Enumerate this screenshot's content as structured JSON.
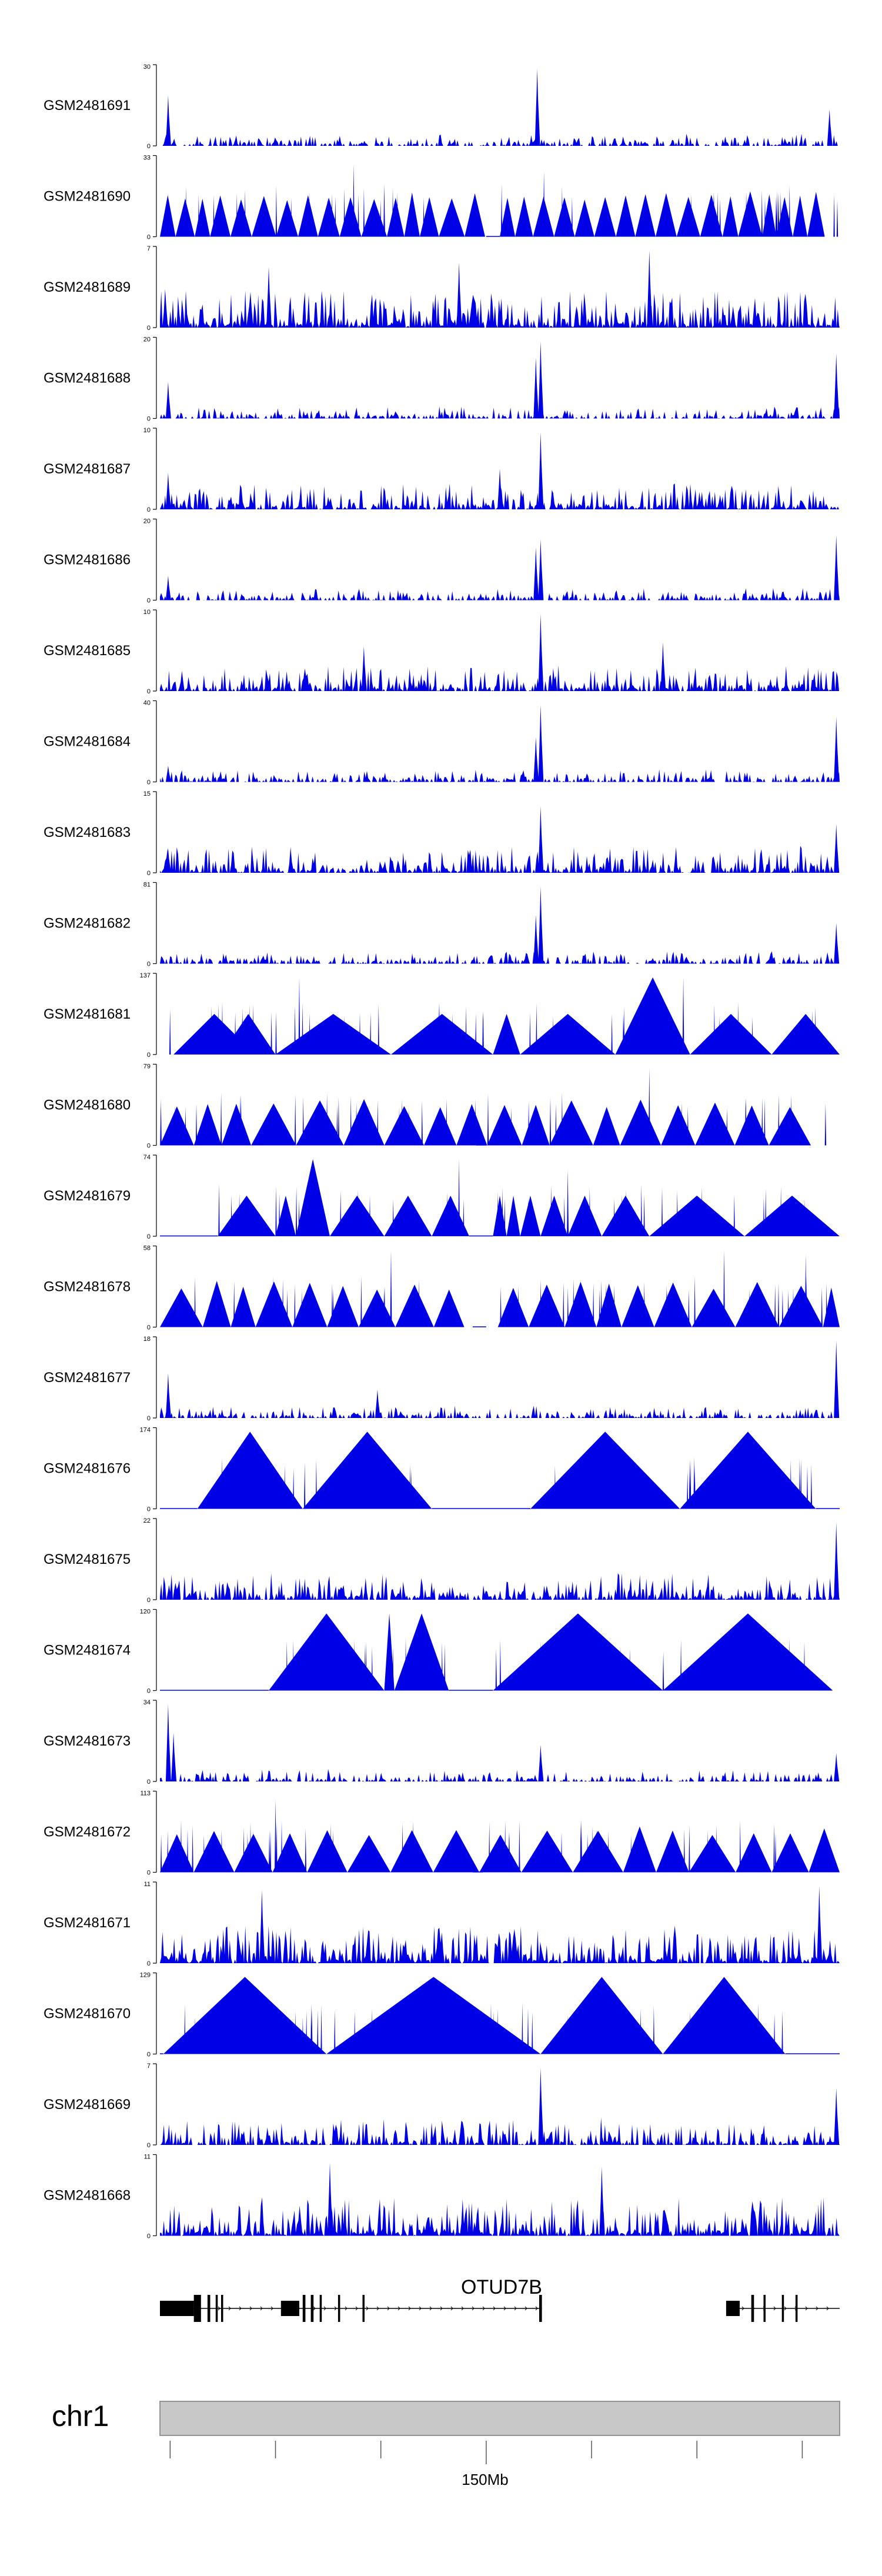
{
  "chart_data": {
    "type": "area",
    "genome_track": "coverage tracks",
    "tracks": [
      {
        "label": "GSM2481691",
        "ymax": "30",
        "profile": "spiky",
        "peaks": [
          [
            0.012,
            0.62
          ],
          [
            0.555,
            0.95
          ],
          [
            0.985,
            0.45
          ]
        ],
        "seed": 11
      },
      {
        "label": "GSM2481690",
        "ymax": "33",
        "profile": "triangles",
        "gaps": [
          [
            0.48,
            0.5
          ]
        ],
        "tri_count": 34,
        "peaks": [
          [
            0.285,
            0.9
          ],
          [
            0.33,
            0.65
          ],
          [
            0.565,
            0.8
          ],
          [
            0.91,
            0.55
          ]
        ],
        "seed": 12
      },
      {
        "label": "GSM2481689",
        "ymax": "7",
        "profile": "dense",
        "peaks": [
          [
            0.72,
            0.95
          ],
          [
            0.44,
            0.8
          ],
          [
            0.16,
            0.75
          ]
        ],
        "seed": 13
      },
      {
        "label": "GSM2481688",
        "ymax": "20",
        "profile": "spiky",
        "peaks": [
          [
            0.012,
            0.45
          ],
          [
            0.56,
            0.95
          ],
          [
            0.553,
            0.75
          ],
          [
            0.995,
            0.8
          ]
        ],
        "seed": 14
      },
      {
        "label": "GSM2481687",
        "ymax": "10",
        "profile": "medium",
        "peaks": [
          [
            0.56,
            0.95
          ],
          [
            0.012,
            0.45
          ],
          [
            0.5,
            0.5
          ]
        ],
        "seed": 15
      },
      {
        "label": "GSM2481686",
        "ymax": "20",
        "profile": "spiky",
        "peaks": [
          [
            0.56,
            0.75
          ],
          [
            0.553,
            0.65
          ],
          [
            0.995,
            0.8
          ],
          [
            0.012,
            0.3
          ]
        ],
        "seed": 16
      },
      {
        "label": "GSM2481685",
        "ymax": "10",
        "profile": "medium",
        "peaks": [
          [
            0.56,
            0.95
          ],
          [
            0.74,
            0.6
          ],
          [
            0.3,
            0.55
          ]
        ],
        "seed": 17
      },
      {
        "label": "GSM2481684",
        "ymax": "40",
        "profile": "spiky",
        "peaks": [
          [
            0.56,
            0.95
          ],
          [
            0.553,
            0.55
          ],
          [
            0.995,
            0.8
          ],
          [
            0.012,
            0.2
          ]
        ],
        "seed": 18
      },
      {
        "label": "GSM2481683",
        "ymax": "15",
        "profile": "medium",
        "peaks": [
          [
            0.56,
            0.82
          ],
          [
            0.995,
            0.6
          ],
          [
            0.012,
            0.3
          ]
        ],
        "seed": 19
      },
      {
        "label": "GSM2481682",
        "ymax": "81",
        "profile": "spiky",
        "peaks": [
          [
            0.56,
            0.95
          ],
          [
            0.553,
            0.6
          ],
          [
            0.995,
            0.5
          ]
        ],
        "seed": 20
      },
      {
        "label": "GSM2481681",
        "ymax": "137",
        "profile": "triangles",
        "gaps": [],
        "tri": [
          [
            0.02,
            0.14,
            0.5
          ],
          [
            0.09,
            0.17,
            0.5
          ],
          [
            0.17,
            0.34,
            0.5
          ],
          [
            0.34,
            0.49,
            0.5
          ],
          [
            0.49,
            0.53,
            0.5
          ],
          [
            0.53,
            0.67,
            0.5
          ],
          [
            0.67,
            0.78,
            0.95
          ],
          [
            0.78,
            0.9,
            0.5
          ],
          [
            0.9,
            1.0,
            0.5
          ]
        ],
        "peaks": [
          [
            0.205,
            0.95
          ],
          [
            0.77,
            0.95
          ]
        ],
        "seed": 21
      },
      {
        "label": "GSM2481680",
        "ymax": "79",
        "profile": "triangles",
        "gaps": [
          [
            0.465,
            0.48
          ]
        ],
        "tri_count": 18,
        "peaks": [
          [
            0.72,
            0.95
          ]
        ],
        "seed": 22
      },
      {
        "label": "GSM2481679",
        "ymax": "74",
        "profile": "triangles",
        "gaps": [
          [
            0.0,
            0.085
          ],
          [
            0.455,
            0.49
          ]
        ],
        "tri": [
          [
            0.085,
            0.17,
            0.5
          ],
          [
            0.17,
            0.2,
            0.5
          ],
          [
            0.2,
            0.25,
            0.95
          ],
          [
            0.25,
            0.33,
            0.5
          ],
          [
            0.33,
            0.4,
            0.5
          ],
          [
            0.4,
            0.455,
            0.5
          ],
          [
            0.49,
            0.51,
            0.5
          ],
          [
            0.51,
            0.53,
            0.5
          ],
          [
            0.53,
            0.56,
            0.5
          ],
          [
            0.56,
            0.6,
            0.5
          ],
          [
            0.6,
            0.65,
            0.5
          ],
          [
            0.65,
            0.72,
            0.5
          ],
          [
            0.72,
            0.86,
            0.5
          ],
          [
            0.86,
            1.0,
            0.5
          ]
        ],
        "peaks": [
          [
            0.44,
            0.95
          ],
          [
            0.6,
            0.82
          ]
        ],
        "seed": 23
      },
      {
        "label": "GSM2481678",
        "ymax": "58",
        "profile": "triangles",
        "gaps": [
          [
            0.46,
            0.48
          ]
        ],
        "tri_count": 20,
        "peaks": [
          [
            0.34,
            0.95
          ],
          [
            0.83,
            0.95
          ],
          [
            0.95,
            0.9
          ]
        ],
        "seed": 24
      },
      {
        "label": "GSM2481677",
        "ymax": "18",
        "profile": "spiky",
        "peaks": [
          [
            0.012,
            0.55
          ],
          [
            0.32,
            0.35
          ],
          [
            0.995,
            0.95
          ]
        ],
        "seed": 25
      },
      {
        "label": "GSM2481676",
        "ymax": "174",
        "profile": "triangles",
        "gaps": [
          [
            0.0,
            0.055
          ],
          [
            0.4,
            0.545
          ],
          [
            0.965,
            1.0
          ]
        ],
        "tri": [
          [
            0.055,
            0.21,
            0.95
          ],
          [
            0.21,
            0.4,
            0.95
          ],
          [
            0.545,
            0.765,
            0.95
          ],
          [
            0.765,
            0.965,
            0.95
          ]
        ],
        "peaks": [],
        "seed": 26
      },
      {
        "label": "GSM2481675",
        "ymax": "22",
        "profile": "medium",
        "peaks": [
          [
            0.995,
            0.95
          ]
        ],
        "seed": 27
      },
      {
        "label": "GSM2481674",
        "ymax": "120",
        "profile": "triangles",
        "gaps": [
          [
            0.0,
            0.16
          ],
          [
            0.425,
            0.49
          ]
        ],
        "tri": [
          [
            0.16,
            0.33,
            0.95
          ],
          [
            0.33,
            0.345,
            0.95
          ],
          [
            0.345,
            0.425,
            0.95
          ],
          [
            0.49,
            0.74,
            0.95
          ],
          [
            0.74,
            0.99,
            0.95
          ]
        ],
        "peaks": [],
        "seed": 28
      },
      {
        "label": "GSM2481673",
        "ymax": "34",
        "profile": "spiky",
        "peaks": [
          [
            0.012,
            0.95
          ],
          [
            0.02,
            0.6
          ],
          [
            0.56,
            0.45
          ],
          [
            0.995,
            0.35
          ]
        ],
        "seed": 29
      },
      {
        "label": "GSM2481672",
        "ymax": "113",
        "profile": "triangles",
        "gaps": [
          [
            0.46,
            0.475
          ]
        ],
        "tri_count": 17,
        "peaks": [
          [
            0.17,
            0.9
          ],
          [
            0.62,
            0.65
          ]
        ],
        "seed": 30
      },
      {
        "label": "GSM2481671",
        "ymax": "11",
        "profile": "dense",
        "gaps": [
          [
            0.485,
            0.49
          ]
        ],
        "peaks": [
          [
            0.97,
            0.95
          ],
          [
            0.15,
            0.9
          ]
        ],
        "seed": 31
      },
      {
        "label": "GSM2481670",
        "ymax": "129",
        "profile": "triangles",
        "gaps": [
          [
            0.0,
            0.005
          ],
          [
            0.92,
            1.0
          ]
        ],
        "tri": [
          [
            0.005,
            0.245,
            0.95
          ],
          [
            0.245,
            0.56,
            0.95
          ],
          [
            0.56,
            0.74,
            0.95
          ],
          [
            0.74,
            0.92,
            0.95
          ]
        ],
        "peaks": [],
        "seed": 32
      },
      {
        "label": "GSM2481669",
        "ymax": "7",
        "profile": "medium",
        "peaks": [
          [
            0.56,
            0.95
          ],
          [
            0.995,
            0.7
          ]
        ],
        "seed": 33
      },
      {
        "label": "GSM2481668",
        "ymax": "11",
        "profile": "dense",
        "peaks": [
          [
            0.25,
            0.9
          ],
          [
            0.65,
            0.85
          ]
        ],
        "seed": 34
      }
    ],
    "ymin_label": "0",
    "gene": {
      "name": "OTUD7B",
      "exons": [
        [
          0.0,
          0.05
        ],
        [
          0.05,
          0.058
        ],
        [
          0.07,
          0.074
        ],
        [
          0.082,
          0.085
        ],
        [
          0.09,
          0.093
        ],
        [
          0.178,
          0.205
        ],
        [
          0.21,
          0.214
        ],
        [
          0.222,
          0.226
        ],
        [
          0.235,
          0.238
        ],
        [
          0.262,
          0.265
        ],
        [
          0.298,
          0.301
        ],
        [
          0.558,
          0.562
        ],
        [
          0.833,
          0.853
        ],
        [
          0.87,
          0.874
        ],
        [
          0.888,
          0.891
        ],
        [
          0.915,
          0.918
        ],
        [
          0.935,
          0.938
        ]
      ],
      "introns": [
        [
          0.0,
          0.562
        ],
        [
          0.833,
          1.0
        ]
      ]
    },
    "chromosome": {
      "name": "chr1",
      "ticks": [
        0.015,
        0.17,
        0.325,
        0.48,
        0.635,
        0.79,
        0.945
      ],
      "tick_label": "150Mb",
      "labeled_tick": 0.48
    },
    "colors": {
      "fill": "#0000e6",
      "gene": "#000000",
      "ideogram": "#c8c8c8",
      "ideogram_edge": "#7a7a7a"
    }
  }
}
